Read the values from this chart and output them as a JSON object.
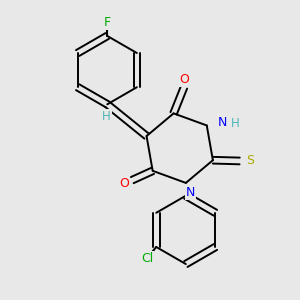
{
  "background_color": "#e8e8e8",
  "atom_colors": {
    "F": "#00aa00",
    "O": "#ff0000",
    "N": "#0000ff",
    "S": "#aaaa00",
    "Cl": "#00aa00",
    "H": "#4db8b8",
    "C": "#000000"
  },
  "figsize": [
    3.0,
    3.0
  ],
  "dpi": 100
}
